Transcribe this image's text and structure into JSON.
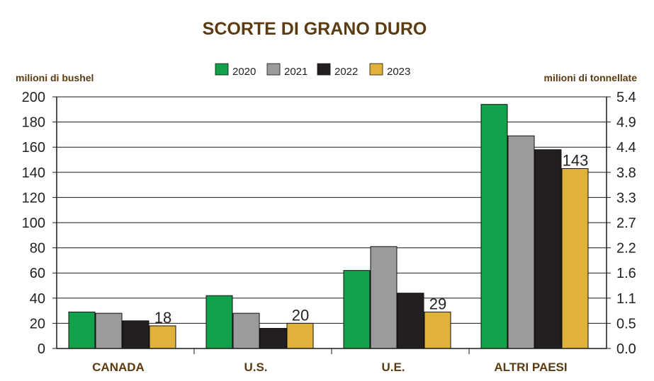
{
  "chart_data": {
    "type": "bar",
    "title": "SCORTE DI GRANO DURO",
    "ylabel_left": "milioni di bushel",
    "ylabel_right": "milioni di tonnellate",
    "ylim": [
      0,
      200
    ],
    "yticks_left": [
      "0",
      "20",
      "40",
      "60",
      "80",
      "100",
      "120",
      "140",
      "160",
      "180",
      "200"
    ],
    "yticks_right": [
      "0.0",
      "0.5",
      "1.1",
      "1.6",
      "2.2",
      "2.7",
      "3.3",
      "3.8",
      "4.4",
      "4.9",
      "5.4"
    ],
    "categories": [
      "CANADA",
      "U.S.",
      "U.E.",
      "ALTRI PAESI"
    ],
    "series": [
      {
        "name": "2020",
        "color": "#12a04a",
        "values": [
          29,
          42,
          62,
          194
        ]
      },
      {
        "name": "2021",
        "color": "#9b9b9d",
        "values": [
          28,
          28,
          81,
          169
        ]
      },
      {
        "name": "2022",
        "color": "#231f20",
        "values": [
          22,
          16,
          44,
          158
        ]
      },
      {
        "name": "2023",
        "color": "#e1b23a",
        "values": [
          18,
          20,
          29,
          143
        ]
      }
    ],
    "data_labels": {
      "series": "2023",
      "values": [
        "18",
        "20",
        "29",
        "143"
      ]
    },
    "grid": true,
    "legend_position": "top-center"
  }
}
